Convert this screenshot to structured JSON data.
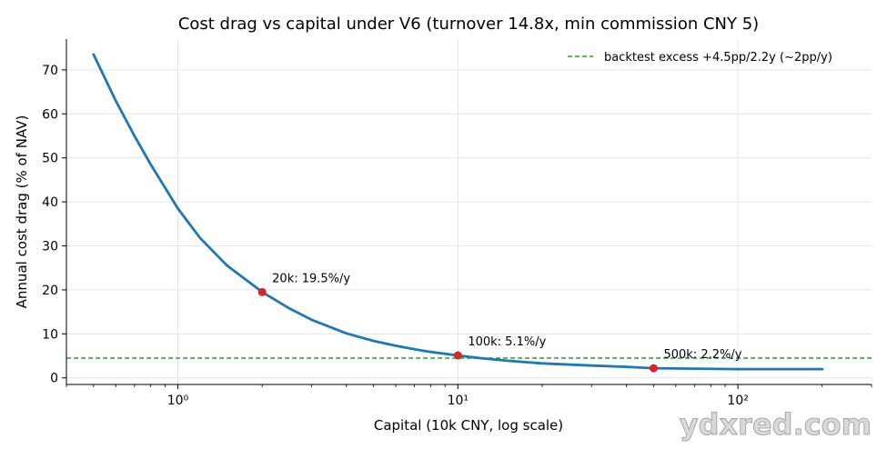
{
  "chart_data": {
    "type": "line",
    "title": "Cost drag vs capital under V6 (turnover 14.8x, min commission CNY 5)",
    "xlabel": "Capital (10k CNY, log scale)",
    "ylabel": "Annual cost drag (% of NAV)",
    "xscale": "log",
    "xlim": [
      0.4,
      300
    ],
    "ylim": [
      -1.5,
      77
    ],
    "x_ticks": [
      1,
      10,
      100
    ],
    "x_tick_labels": [
      "10⁰",
      "10¹",
      "10²"
    ],
    "y_ticks": [
      0,
      10,
      20,
      30,
      40,
      50,
      60,
      70
    ],
    "y_tick_labels": [
      "0",
      "10",
      "20",
      "30",
      "40",
      "50",
      "60",
      "70"
    ],
    "grid": true,
    "legend_position": "top-right",
    "series": [
      {
        "color": "#1f77b4",
        "x": [
          0.5,
          0.6,
          0.7,
          0.8,
          1,
          1.2,
          1.5,
          2,
          2.5,
          3,
          4,
          5,
          6,
          7,
          8,
          10,
          12,
          15,
          20,
          30,
          40,
          50,
          70,
          100,
          150,
          200
        ],
        "y": [
          73.5,
          63.0,
          55.0,
          48.5,
          38.5,
          31.8,
          25.5,
          19.5,
          15.8,
          13.2,
          10.1,
          8.4,
          7.3,
          6.5,
          5.9,
          5.1,
          4.5,
          3.9,
          3.3,
          2.8,
          2.5,
          2.2,
          2.1,
          2.0,
          2.0,
          2.0
        ]
      }
    ],
    "reference_lines": [
      {
        "y": 4.5,
        "label": "backtest excess +4.5pp/2.2y (~2pp/y)",
        "color": "#2ca02c",
        "style": "dashed"
      }
    ],
    "highlighted_points": [
      {
        "x": 2,
        "y": 19.5,
        "label": "20k: 19.5%/y",
        "color": "#d62728"
      },
      {
        "x": 10,
        "y": 5.1,
        "label": "100k: 5.1%/y",
        "color": "#d62728"
      },
      {
        "x": 50,
        "y": 2.2,
        "label": "500k: 2.2%/y",
        "color": "#d62728"
      }
    ]
  },
  "watermark": "ydxred.com"
}
